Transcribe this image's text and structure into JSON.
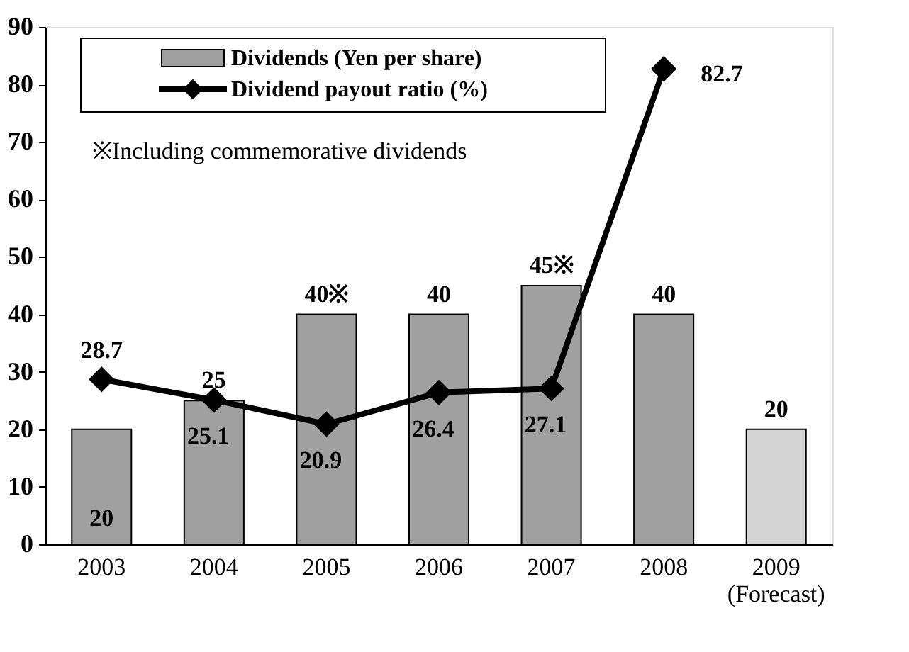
{
  "chart_data": {
    "type": "bar",
    "categories": [
      "2003",
      "2004",
      "2005",
      "2006",
      "2007",
      "2008",
      "2009\n(Forecast)"
    ],
    "series": [
      {
        "name": "Dividends (Yen per share)",
        "colors": [
          "#a0a0a0",
          "#a0a0a0",
          "#a0a0a0",
          "#a0a0a0",
          "#a0a0a0",
          "#a0a0a0",
          "#d4d4d4"
        ],
        "values": [
          20,
          25,
          40,
          40,
          45,
          40,
          20
        ],
        "value_labels": [
          "20",
          "25",
          "40※",
          "40",
          "45※",
          "40",
          "20"
        ]
      },
      {
        "name": "Dividend payout ratio (%)",
        "type": "line",
        "color": "#000000",
        "marker": "diamond",
        "values": [
          28.7,
          25.1,
          20.9,
          26.4,
          27.1,
          82.7,
          null
        ],
        "value_labels": [
          "28.7",
          "25.1",
          "20.9",
          "26.4",
          "27.1",
          "82.7",
          null
        ]
      }
    ],
    "annotations": [
      "※Including commemorative dividends"
    ],
    "ylim": [
      0,
      90
    ],
    "yticks": [
      0,
      10,
      20,
      30,
      40,
      50,
      60,
      70,
      80,
      90
    ],
    "grid": false,
    "legend": "top left"
  }
}
